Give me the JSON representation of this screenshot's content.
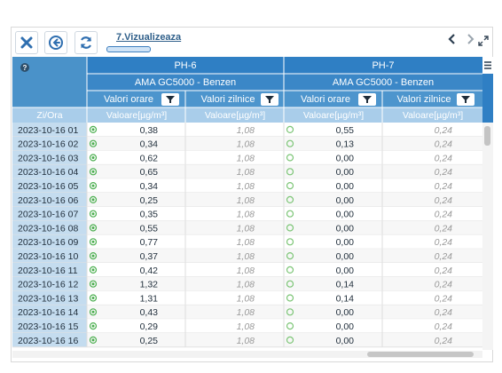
{
  "toolbar": {
    "tab_label": "7.Vizualizeaza"
  },
  "grid": {
    "corner_label": "Zi/Ora",
    "stations": [
      {
        "name": "PH-6",
        "device": "AMA GC5000 - Benzen",
        "col_hourly": "Valori orare",
        "col_daily": "Valori zilnice",
        "unit_hourly": "Valoare[µg/m³]",
        "unit_daily": "Valoare[µg/m³]",
        "status_color": "#4caf50"
      },
      {
        "name": "PH-7",
        "device": "AMA GC5000 - Benzen",
        "col_hourly": "Valori orare",
        "col_daily": "Valori zilnice",
        "unit_hourly": "Valoare[µg/m³]",
        "unit_daily": "Valoare[µg/m³]",
        "status_color": "#7cc576"
      }
    ],
    "rows": [
      {
        "time": "2023-10-16 01",
        "v1": "0,38",
        "d1": "1,08",
        "v2": "0,55",
        "d2": "0,24"
      },
      {
        "time": "2023-10-16 02",
        "v1": "0,34",
        "d1": "1,08",
        "v2": "0,13",
        "d2": "0,24"
      },
      {
        "time": "2023-10-16 03",
        "v1": "0,62",
        "d1": "1,08",
        "v2": "0,00",
        "d2": "0,24"
      },
      {
        "time": "2023-10-16 04",
        "v1": "0,65",
        "d1": "1,08",
        "v2": "0,00",
        "d2": "0,24"
      },
      {
        "time": "2023-10-16 05",
        "v1": "0,34",
        "d1": "1,08",
        "v2": "0,00",
        "d2": "0,24"
      },
      {
        "time": "2023-10-16 06",
        "v1": "0,25",
        "d1": "1,08",
        "v2": "0,00",
        "d2": "0,24"
      },
      {
        "time": "2023-10-16 07",
        "v1": "0,35",
        "d1": "1,08",
        "v2": "0,00",
        "d2": "0,24"
      },
      {
        "time": "2023-10-16 08",
        "v1": "0,55",
        "d1": "1,08",
        "v2": "0,00",
        "d2": "0,24"
      },
      {
        "time": "2023-10-16 09",
        "v1": "0,77",
        "d1": "1,08",
        "v2": "0,00",
        "d2": "0,24"
      },
      {
        "time": "2023-10-16 10",
        "v1": "0,37",
        "d1": "1,08",
        "v2": "0,00",
        "d2": "0,24"
      },
      {
        "time": "2023-10-16 11",
        "v1": "0,42",
        "d1": "1,08",
        "v2": "0,00",
        "d2": "0,24"
      },
      {
        "time": "2023-10-16 12",
        "v1": "1,32",
        "d1": "1,08",
        "v2": "0,14",
        "d2": "0,24"
      },
      {
        "time": "2023-10-16 13",
        "v1": "1,31",
        "d1": "1,08",
        "v2": "0,14",
        "d2": "0,24"
      },
      {
        "time": "2023-10-16 14",
        "v1": "0,43",
        "d1": "1,08",
        "v2": "0,00",
        "d2": "0,24"
      },
      {
        "time": "2023-10-16 15",
        "v1": "0,29",
        "d1": "1,08",
        "v2": "0,00",
        "d2": "0,24"
      },
      {
        "time": "2023-10-16 16",
        "v1": "0,25",
        "d1": "1,08",
        "v2": "0,00",
        "d2": "0,24"
      }
    ]
  },
  "icons": {
    "close": "close-icon",
    "back": "back-circle-icon",
    "refresh": "refresh-icon",
    "prev": "chevron-left-icon",
    "next": "chevron-right-icon",
    "expand": "expand-icon",
    "help": "help-icon",
    "menu": "menu-icon",
    "filter": "filter-icon"
  }
}
